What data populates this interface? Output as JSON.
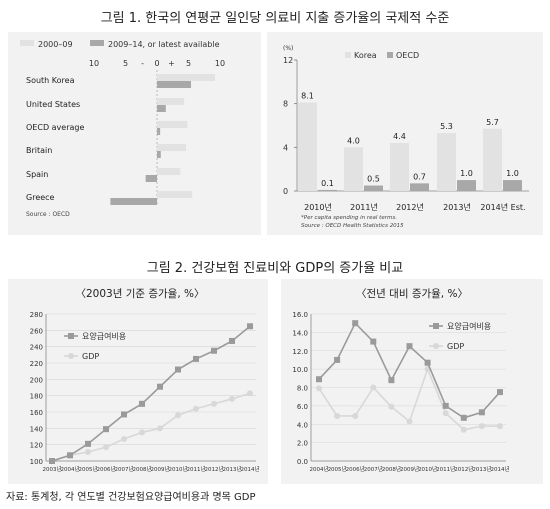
{
  "fig1": {
    "title": "그림 1. 한국의 연평균 일인당 의료비 지출 증가율의 국제적 수준"
  },
  "fig2": {
    "title": "그림 2. 건강보험 진료비와 GDP의 증가율 비교",
    "left_title": "〈2003년 기준 증가율, %〉",
    "right_title": "〈전년 대비 증가율, %〉"
  },
  "source_note": "자료: 통계청, 각 연도별 건강보험요양급여비용과 명목 GDP",
  "colors": {
    "light": "#e2e2e2",
    "dark": "#a8a8a8",
    "panel": "#f2f2f2",
    "line_dark": "#9a9a9a",
    "line_light": "#d8d8d8"
  },
  "chart_data": [
    {
      "type": "bar",
      "orientation": "horizontal",
      "categories": [
        "South Korea",
        "United States",
        "OECD average",
        "Britain",
        "Spain",
        "Greece"
      ],
      "tick_labels": [
        "10",
        "5",
        "-",
        "0",
        "+",
        "5",
        "10"
      ],
      "xlim": [
        -10,
        10
      ],
      "legend_position": "top-left",
      "series": [
        {
          "name": "2000–09",
          "color": "#e2e2e2",
          "values": [
            9.2,
            4.3,
            4.8,
            4.6,
            3.7,
            5.6
          ]
        },
        {
          "name": "2009–14, or latest available",
          "color": "#a8a8a8",
          "values": [
            5.4,
            1.4,
            0.5,
            0.6,
            -1.8,
            -7.4
          ]
        }
      ],
      "source": "Source : OECD"
    },
    {
      "type": "bar",
      "categories": [
        "2010년",
        "2011년",
        "2012년",
        "2013년",
        "2014년 Est."
      ],
      "unit_label": "(%)",
      "y_ticks": [
        "12",
        "8",
        "4",
        "0"
      ],
      "ylim": [
        0,
        12
      ],
      "legend_position": "top-right",
      "series": [
        {
          "name": "Korea",
          "color": "#e2e2e2",
          "values": [
            8.1,
            4.0,
            4.4,
            5.3,
            5.7
          ],
          "labels": [
            "8.1",
            "4.0",
            "4.4",
            "5.3",
            "5.7"
          ]
        },
        {
          "name": "OECD",
          "color": "#a8a8a8",
          "values": [
            0.1,
            0.5,
            0.7,
            1.0,
            1.0
          ],
          "labels": [
            "0.1",
            "0.5",
            "0.7",
            "1.0",
            "1.0"
          ]
        }
      ],
      "notes": [
        "*Per capita spending in real terms.",
        "Source : OECD Health Statistics 2015"
      ]
    },
    {
      "type": "line",
      "categories": [
        "2003년",
        "2004년",
        "2005년",
        "2006년",
        "2007년",
        "2008년",
        "2009년",
        "2010년",
        "2011년",
        "2012년",
        "2013년",
        "2014년"
      ],
      "y_ticks": [
        "280",
        "260",
        "240",
        "220",
        "200",
        "180",
        "160",
        "140",
        "120",
        "100"
      ],
      "ylim": [
        100,
        280
      ],
      "legend_position": "top-left",
      "series": [
        {
          "name": "요양급여비용",
          "color": "#9a9a9a",
          "marker": "square",
          "values": [
            100,
            107,
            121,
            139,
            157,
            170,
            191,
            212,
            225,
            235,
            247,
            265
          ]
        },
        {
          "name": "GDP",
          "color": "#d8d8d8",
          "marker": "circle",
          "values": [
            100,
            107,
            111,
            117,
            127,
            135,
            140,
            156,
            164,
            170,
            176,
            183
          ]
        }
      ]
    },
    {
      "type": "line",
      "categories": [
        "2004년",
        "2005년",
        "2006년",
        "2007년",
        "2008년",
        "2009년",
        "2010년",
        "2011년",
        "2012년",
        "2013년",
        "2014년"
      ],
      "y_ticks": [
        "16.0",
        "14.0",
        "12.0",
        "10.0",
        "8.0",
        "6.0",
        "4.0",
        "2.0",
        "0.0"
      ],
      "ylim": [
        0,
        16
      ],
      "legend_position": "top-right",
      "series": [
        {
          "name": "요양급여비용",
          "color": "#9a9a9a",
          "marker": "square",
          "values": [
            8.9,
            11.0,
            15.0,
            13.0,
            8.8,
            12.5,
            10.7,
            6.0,
            4.7,
            5.3,
            7.5
          ]
        },
        {
          "name": "GDP",
          "color": "#d8d8d8",
          "marker": "circle",
          "values": [
            7.9,
            4.9,
            4.9,
            8.0,
            5.9,
            4.3,
            10.0,
            5.2,
            3.4,
            3.8,
            3.8
          ]
        }
      ]
    }
  ]
}
